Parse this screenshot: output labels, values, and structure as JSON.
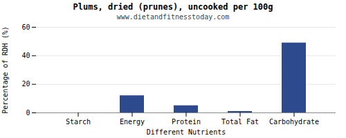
{
  "chart_data": {
    "type": "bar",
    "title": "Plums, dried (prunes), uncooked per 100g",
    "subtitle": "www.dietandfitnesstoday.com",
    "xlabel": "Different Nutrients",
    "ylabel": "Percentage of RDH (%)",
    "categories": [
      "Starch",
      "Energy",
      "Protein",
      "Total Fat",
      "Carbohydrate"
    ],
    "values": [
      0,
      12,
      5,
      1,
      49
    ],
    "color": "#2e4a8e",
    "ylim": [
      0,
      60
    ],
    "yticks": [
      0,
      20,
      40,
      60
    ],
    "grid": true
  }
}
